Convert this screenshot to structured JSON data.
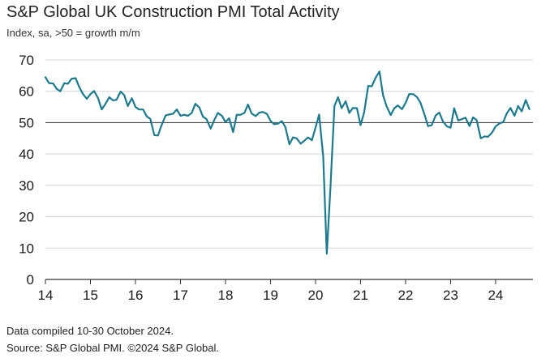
{
  "chart_data": {
    "type": "line",
    "title": "S&P Global UK Construction PMI Total Activity",
    "subtitle": "Index, sa, >50 = growth m/m",
    "xlabel": "",
    "ylabel": "",
    "ylim": [
      0,
      70
    ],
    "yticks": [
      0,
      10,
      20,
      30,
      40,
      50,
      60,
      70
    ],
    "xlim": [
      2014,
      2024.83
    ],
    "xticks": [
      {
        "year": 2014,
        "label": "14"
      },
      {
        "year": 2015,
        "label": "15"
      },
      {
        "year": 2016,
        "label": "16"
      },
      {
        "year": 2017,
        "label": "17"
      },
      {
        "year": 2018,
        "label": "18"
      },
      {
        "year": 2019,
        "label": "19"
      },
      {
        "year": 2020,
        "label": "20"
      },
      {
        "year": 2021,
        "label": "21"
      },
      {
        "year": 2022,
        "label": "22"
      },
      {
        "year": 2023,
        "label": "23"
      },
      {
        "year": 2024,
        "label": "24"
      }
    ],
    "reference_line": 50,
    "grid": "horizontal",
    "series": [
      {
        "name": "UK Construction PMI Total Activity",
        "color": "#1d7a8c",
        "x": [
          2014.0,
          2014.08,
          2014.17,
          2014.25,
          2014.33,
          2014.42,
          2014.5,
          2014.58,
          2014.67,
          2014.75,
          2014.83,
          2014.92,
          2015.0,
          2015.08,
          2015.17,
          2015.25,
          2015.33,
          2015.42,
          2015.5,
          2015.58,
          2015.67,
          2015.75,
          2015.83,
          2015.92,
          2016.0,
          2016.08,
          2016.17,
          2016.25,
          2016.33,
          2016.42,
          2016.5,
          2016.58,
          2016.67,
          2016.75,
          2016.83,
          2016.92,
          2017.0,
          2017.08,
          2017.17,
          2017.25,
          2017.33,
          2017.42,
          2017.5,
          2017.58,
          2017.67,
          2017.75,
          2017.83,
          2017.92,
          2018.0,
          2018.08,
          2018.17,
          2018.25,
          2018.33,
          2018.42,
          2018.5,
          2018.58,
          2018.67,
          2018.75,
          2018.83,
          2018.92,
          2019.0,
          2019.08,
          2019.17,
          2019.25,
          2019.33,
          2019.42,
          2019.5,
          2019.58,
          2019.67,
          2019.75,
          2019.83,
          2019.92,
          2020.0,
          2020.08,
          2020.17,
          2020.25,
          2020.33,
          2020.42,
          2020.5,
          2020.58,
          2020.67,
          2020.75,
          2020.83,
          2020.92,
          2021.0,
          2021.08,
          2021.17,
          2021.25,
          2021.33,
          2021.42,
          2021.5,
          2021.58,
          2021.67,
          2021.75,
          2021.83,
          2021.92,
          2022.0,
          2022.08,
          2022.17,
          2022.25,
          2022.33,
          2022.42,
          2022.5,
          2022.58,
          2022.67,
          2022.75,
          2022.83,
          2022.92,
          2023.0,
          2023.08,
          2023.17,
          2023.25,
          2023.33,
          2023.42,
          2023.5,
          2023.58,
          2023.67,
          2023.75,
          2023.83,
          2023.92,
          2024.0,
          2024.08,
          2024.17,
          2024.25,
          2024.33,
          2024.42,
          2024.5,
          2024.58,
          2024.67,
          2024.75
        ],
        "values": [
          64.5,
          62.6,
          62.5,
          60.8,
          60.0,
          62.6,
          62.4,
          64.0,
          64.2,
          61.4,
          59.2,
          57.6,
          59.1,
          60.1,
          57.8,
          54.2,
          55.9,
          58.1,
          57.1,
          57.3,
          59.9,
          58.8,
          55.3,
          57.8,
          55.0,
          54.2,
          54.2,
          52.0,
          51.2,
          46.0,
          45.9,
          49.2,
          52.3,
          52.6,
          52.8,
          54.2,
          52.2,
          52.5,
          52.2,
          53.1,
          56.0,
          54.8,
          51.9,
          51.1,
          48.1,
          50.8,
          53.1,
          52.2,
          50.2,
          51.4,
          47.0,
          52.5,
          52.5,
          53.1,
          55.8,
          52.9,
          52.1,
          53.2,
          53.4,
          52.8,
          50.6,
          49.5,
          49.7,
          50.5,
          48.6,
          43.1,
          45.3,
          45.0,
          43.3,
          44.2,
          45.3,
          44.4,
          48.4,
          52.6,
          39.3,
          8.2,
          28.9,
          55.3,
          58.1,
          54.6,
          56.8,
          53.1,
          54.7,
          54.6,
          49.2,
          53.3,
          61.7,
          61.6,
          64.2,
          66.3,
          58.7,
          55.2,
          52.4,
          54.6,
          55.5,
          54.3,
          56.3,
          59.1,
          59.1,
          58.2,
          56.4,
          52.6,
          48.9,
          49.2,
          52.3,
          53.2,
          50.4,
          48.8,
          48.4,
          54.6,
          50.7,
          51.1,
          51.6,
          48.9,
          51.7,
          50.8,
          45.0,
          45.6,
          45.5,
          46.8,
          48.8,
          49.7,
          50.2,
          53.0,
          54.7,
          52.2,
          55.3,
          53.6,
          57.2,
          54.3
        ]
      }
    ],
    "footnotes": [
      "Data compiled 10-30 October 2024.",
      "Source: S&P Global PMI. ©2024 S&P Global."
    ]
  }
}
